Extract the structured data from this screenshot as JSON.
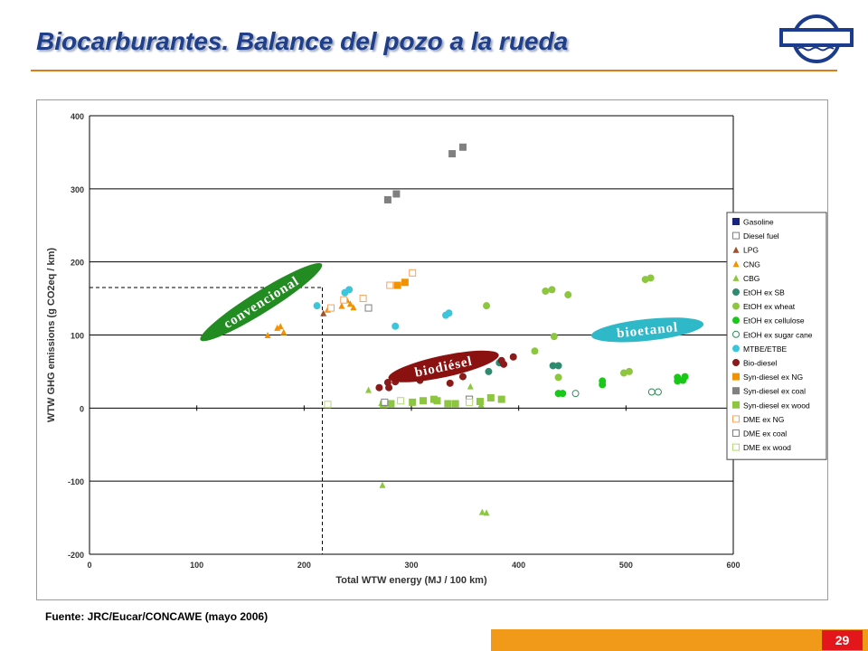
{
  "slide": {
    "title": "Biocarburantes. Balance del pozo a la rueda",
    "source": "Fuente: JRC/Eucar/CONCAWE (mayo 2006)",
    "page_number": "29"
  },
  "colors": {
    "title": "#1f3f8a",
    "accent_rule": "#e07b1a",
    "footer_bar": "#f19a1a",
    "page_badge": "#e3161b",
    "label_convencional": "#228b22",
    "label_biodiesel": "#8b1010",
    "label_bioetanol": "#2fb8c8"
  },
  "chart_data": {
    "type": "scatter",
    "xlabel": "Total WTW energy (MJ / 100 km)",
    "ylabel": "WTW GHG emissions (g CO2eq / km)",
    "xlim": [
      0,
      600
    ],
    "ylim": [
      -200,
      400
    ],
    "x_ticks": [
      0,
      100,
      200,
      300,
      400,
      500,
      600
    ],
    "y_ticks": [
      -200,
      -100,
      0,
      100,
      200,
      300,
      400
    ],
    "grid": "horizontal at 100-unit intervals",
    "legend_position": "right",
    "reference_lines": [
      {
        "type": "vertical",
        "x": 217,
        "style": "dashed"
      },
      {
        "type": "horizontal",
        "y": 165,
        "style": "dashed"
      }
    ],
    "annotations": [
      {
        "text": "convencional",
        "x": 160,
        "y": 145,
        "rotate": -32,
        "color": "#228b22"
      },
      {
        "text": "biodiésel",
        "x": 330,
        "y": 57,
        "rotate": -12,
        "color": "#8b1010"
      },
      {
        "text": "bioetanol",
        "x": 520,
        "y": 107,
        "rotate": -6,
        "color": "#2fb8c8"
      }
    ],
    "series": [
      {
        "name": "Gasoline",
        "marker": "square-filled",
        "color": "#1a237e",
        "points": []
      },
      {
        "name": "Diesel fuel",
        "marker": "square-open",
        "color": "#7f7f7f",
        "points": [
          [
            260,
            137
          ]
        ]
      },
      {
        "name": "LPG",
        "marker": "triangle",
        "color": "#a0522d",
        "points": [
          [
            218,
            130
          ]
        ]
      },
      {
        "name": "CNG",
        "marker": "triangle",
        "color": "#f39200",
        "points": [
          [
            166,
            100
          ],
          [
            175,
            110
          ],
          [
            178,
            112
          ],
          [
            181,
            104
          ],
          [
            222,
            135
          ],
          [
            235,
            140
          ],
          [
            240,
            148
          ],
          [
            243,
            143
          ],
          [
            246,
            138
          ]
        ]
      },
      {
        "name": "CBG",
        "marker": "triangle",
        "color": "#8dc63f",
        "points": [
          [
            260,
            25
          ],
          [
            272,
            7
          ],
          [
            355,
            30
          ],
          [
            365,
            5
          ],
          [
            273,
            -105
          ],
          [
            366,
            -142
          ],
          [
            370,
            -143
          ]
        ]
      },
      {
        "name": "EtOH ex SB",
        "marker": "circle",
        "color": "#2e8b70",
        "points": [
          [
            372,
            50
          ],
          [
            382,
            62
          ],
          [
            432,
            58
          ],
          [
            437,
            58
          ]
        ]
      },
      {
        "name": "EtOH ex wheat",
        "marker": "circle",
        "color": "#8dc63f",
        "points": [
          [
            370,
            140
          ],
          [
            415,
            78
          ],
          [
            425,
            160
          ],
          [
            431,
            162
          ],
          [
            433,
            98
          ],
          [
            437,
            42
          ],
          [
            446,
            155
          ],
          [
            498,
            48
          ],
          [
            503,
            50
          ],
          [
            518,
            176
          ],
          [
            523,
            178
          ]
        ]
      },
      {
        "name": "EtOH ex cellulose",
        "marker": "circle",
        "color": "#19c819",
        "points": [
          [
            437,
            20
          ],
          [
            441,
            20
          ],
          [
            478,
            32
          ],
          [
            478,
            37
          ],
          [
            548,
            42
          ],
          [
            548,
            37
          ],
          [
            553,
            38
          ],
          [
            555,
            43
          ]
        ]
      },
      {
        "name": "EtOH ex sugar cane",
        "marker": "circle-open",
        "color": "#2e8b57",
        "points": [
          [
            453,
            20
          ],
          [
            524,
            22
          ],
          [
            530,
            22
          ]
        ]
      },
      {
        "name": "MTBE/ETBE",
        "marker": "circle",
        "color": "#3cc6dc",
        "points": [
          [
            212,
            140
          ],
          [
            238,
            158
          ],
          [
            242,
            162
          ],
          [
            285,
            112
          ],
          [
            332,
            127
          ],
          [
            335,
            130
          ]
        ]
      },
      {
        "name": "Bio-diesel",
        "marker": "circle",
        "color": "#8b1a1a",
        "points": [
          [
            270,
            28
          ],
          [
            278,
            35
          ],
          [
            279,
            28
          ],
          [
            285,
            36
          ],
          [
            308,
            38
          ],
          [
            336,
            34
          ],
          [
            348,
            43
          ],
          [
            374,
            68
          ],
          [
            384,
            65
          ],
          [
            386,
            60
          ],
          [
            395,
            70
          ]
        ]
      },
      {
        "name": "Syn-diesel ex NG",
        "marker": "square",
        "color": "#f39200",
        "points": [
          [
            287,
            168
          ],
          [
            294,
            172
          ]
        ]
      },
      {
        "name": "Syn-diesel ex coal",
        "marker": "square",
        "color": "#808080",
        "points": [
          [
            278,
            285
          ],
          [
            286,
            293
          ],
          [
            338,
            348
          ],
          [
            348,
            357
          ]
        ]
      },
      {
        "name": "Syn-diesel ex wood",
        "marker": "square",
        "color": "#8dc63f",
        "points": [
          [
            274,
            5
          ],
          [
            281,
            6
          ],
          [
            301,
            8
          ],
          [
            311,
            10
          ],
          [
            321,
            12
          ],
          [
            324,
            10
          ],
          [
            334,
            6
          ],
          [
            341,
            6
          ],
          [
            354,
            12
          ],
          [
            364,
            9
          ],
          [
            374,
            14
          ],
          [
            384,
            12
          ]
        ]
      },
      {
        "name": "DME ex NG",
        "marker": "square-open",
        "color": "#f6a35c",
        "points": [
          [
            225,
            137
          ],
          [
            237,
            148
          ],
          [
            255,
            150
          ],
          [
            280,
            168
          ],
          [
            301,
            185
          ]
        ]
      },
      {
        "name": "DME ex coal",
        "marker": "square-open",
        "color": "#7f7f7f",
        "points": [
          [
            275,
            8
          ],
          [
            354,
            12
          ]
        ]
      },
      {
        "name": "DME ex wood",
        "marker": "square-open",
        "color": "#b5d775",
        "points": [
          [
            222,
            5
          ],
          [
            290,
            10
          ],
          [
            354,
            8
          ]
        ]
      }
    ]
  }
}
